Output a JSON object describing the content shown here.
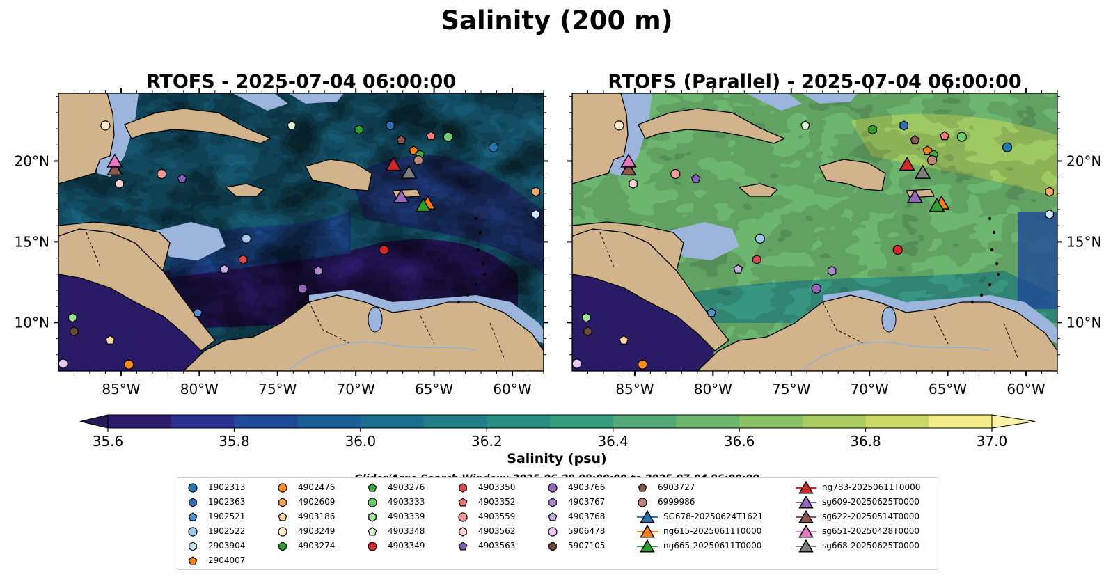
{
  "title": "Salinity (200 m)",
  "panels": [
    {
      "title": "RTOFS - 2025-07-04 06:00:00",
      "variant": "rtofs"
    },
    {
      "title": "RTOFS (Parallel) - 2025-07-04 06:00:00",
      "variant": "parallel"
    }
  ],
  "map_extent": {
    "lon": [
      -89,
      -58
    ],
    "lat": [
      7,
      24.2
    ]
  },
  "lon_ticks": [
    -85,
    -80,
    -75,
    -70,
    -65,
    -60
  ],
  "lat_ticks": [
    10,
    15,
    20
  ],
  "lon_tick_labels": [
    "85°W",
    "80°W",
    "75°W",
    "70°W",
    "65°W",
    "60°W"
  ],
  "lat_tick_labels": [
    "10°N",
    "15°N",
    "20°N"
  ],
  "colorbar": {
    "label": "Salinity (psu)",
    "min": 35.6,
    "max": 37.0,
    "step": 0.1,
    "tick_values": [
      35.6,
      35.8,
      36.0,
      36.2,
      36.4,
      36.6,
      36.8,
      37.0
    ],
    "tick_labels": [
      "35.6",
      "35.8",
      "36.0",
      "36.2",
      "36.4",
      "36.6",
      "36.8",
      "37.0"
    ],
    "colors": [
      "#2c1b6b",
      "#2a2f8e",
      "#1f4a98",
      "#1a5e95",
      "#1b6e8d",
      "#227e88",
      "#2a8d83",
      "#379b7e",
      "#52a977",
      "#6db66f",
      "#8ac168",
      "#a8cc62",
      "#cbd966",
      "#f2ec8a"
    ],
    "under_color": "#261a55",
    "over_color": "#fdf3a6"
  },
  "colors": {
    "land": "#d2b48c",
    "shelf": "#9bb5dd",
    "deep_pacific": "#2a1b66"
  },
  "search_window": "Glider/Argo Search Window: 2025-06-29 08:00:00 to 2025-07-04 06:00:00",
  "legend": [
    {
      "label": "1902313",
      "shape": "circle",
      "color": "#1f77b4",
      "lon": -61.2,
      "lat": 20.85
    },
    {
      "label": "1902363",
      "shape": "hexagon",
      "color": "#2e6fb7",
      "lon": -67.8,
      "lat": 22.2
    },
    {
      "label": "1902521",
      "shape": "pentagon",
      "color": "#4f93d1",
      "lon": -80.1,
      "lat": 10.6
    },
    {
      "label": "1902522",
      "shape": "circle",
      "color": "#9ec9ea",
      "lon": -77.0,
      "lat": 15.2
    },
    {
      "label": "2903904",
      "shape": "hexagon",
      "color": "#c8e8f7",
      "lon": -58.5,
      "lat": 16.7
    },
    {
      "label": "2904007",
      "shape": "pentagon",
      "color": "#ff7f0e",
      "lon": -66.3,
      "lat": 20.65
    },
    {
      "label": "4902476",
      "shape": "circle",
      "color": "#ff8c1a",
      "lon": -84.5,
      "lat": 7.4
    },
    {
      "label": "4902609",
      "shape": "hexagon",
      "color": "#ffa95e",
      "lon": -58.5,
      "lat": 18.1
    },
    {
      "label": "4903186",
      "shape": "pentagon",
      "color": "#ffd8a8",
      "lon": -85.7,
      "lat": 8.9
    },
    {
      "label": "4903249",
      "shape": "circle",
      "color": "#ffe9cf",
      "lon": -86.0,
      "lat": 22.2
    },
    {
      "label": "4903274",
      "shape": "hexagon",
      "color": "#2ca02c",
      "lon": -69.8,
      "lat": 21.95
    },
    {
      "label": "4903276",
      "shape": "pentagon",
      "color": "#3caf3c",
      "lon": -65.9,
      "lat": 20.4
    },
    {
      "label": "4903333",
      "shape": "circle",
      "color": "#6fcf6f",
      "lon": -64.1,
      "lat": 21.5
    },
    {
      "label": "4903339",
      "shape": "hexagon",
      "color": "#9fe39f",
      "lon": -88.1,
      "lat": 10.3
    },
    {
      "label": "4903348",
      "shape": "pentagon",
      "color": "#d9f7d0",
      "lon": -74.1,
      "lat": 22.2
    },
    {
      "label": "4903349",
      "shape": "circle",
      "color": "#d62728",
      "lon": -68.2,
      "lat": 14.5
    },
    {
      "label": "4903350",
      "shape": "hexagon",
      "color": "#e24a4a",
      "lon": -77.2,
      "lat": 13.9
    },
    {
      "label": "4903352",
      "shape": "pentagon",
      "color": "#f07a7a",
      "lon": -65.2,
      "lat": 21.55
    },
    {
      "label": "4903559",
      "shape": "circle",
      "color": "#f09a9a",
      "lon": -82.4,
      "lat": 19.2
    },
    {
      "label": "4903562",
      "shape": "hexagon",
      "color": "#ffd0d0",
      "lon": -85.1,
      "lat": 18.6
    },
    {
      "label": "4903563",
      "shape": "pentagon",
      "color": "#8560b8",
      "lon": -81.1,
      "lat": 18.9
    },
    {
      "label": "4903766",
      "shape": "circle",
      "color": "#9467bd",
      "lon": -73.4,
      "lat": 12.1
    },
    {
      "label": "4903767",
      "shape": "hexagon",
      "color": "#b08ad0",
      "lon": -72.4,
      "lat": 13.2
    },
    {
      "label": "4903768",
      "shape": "pentagon",
      "color": "#c9aee6",
      "lon": -78.4,
      "lat": 13.3
    },
    {
      "label": "5906478",
      "shape": "circle",
      "color": "#e6c8f2",
      "lon": -88.7,
      "lat": 7.45
    },
    {
      "label": "5907105",
      "shape": "hexagon",
      "color": "#6b4a3a",
      "lon": -88.0,
      "lat": 9.45
    },
    {
      "label": "6903727",
      "shape": "pentagon",
      "color": "#8c564b",
      "lon": -67.1,
      "lat": 21.3
    },
    {
      "label": "6999986",
      "shape": "circle",
      "color": "#c08878",
      "lon": -66.0,
      "lat": 20.05
    },
    {
      "label": "SG678-20250624T1621",
      "shape": "triangle-line",
      "color": "#1f77b4"
    },
    {
      "label": "ng615-20250611T0000",
      "shape": "triangle-line",
      "color": "#ff7f0e",
      "lon": -65.4,
      "lat": 17.4
    },
    {
      "label": "ng665-20250611T0000",
      "shape": "triangle-line",
      "color": "#2ca02c",
      "lon": -65.7,
      "lat": 17.25
    },
    {
      "label": "ng783-20250611T0000",
      "shape": "triangle-line",
      "color": "#d62728",
      "lon": -67.6,
      "lat": 19.8
    },
    {
      "label": "sg609-20250625T0000",
      "shape": "triangle-line",
      "color": "#9467bd",
      "lon": -67.1,
      "lat": 17.8
    },
    {
      "label": "sg622-20250514T0000",
      "shape": "triangle-line",
      "color": "#8c564b",
      "lon": -85.4,
      "lat": 19.5
    },
    {
      "label": "sg651-20250428T0000",
      "shape": "triangle-line",
      "color": "#e377c2",
      "lon": -85.4,
      "lat": 20.0
    },
    {
      "label": "sg668-20250625T0000",
      "shape": "triangle-line",
      "color": "#7f7f7f",
      "lon": -66.6,
      "lat": 19.3
    }
  ]
}
